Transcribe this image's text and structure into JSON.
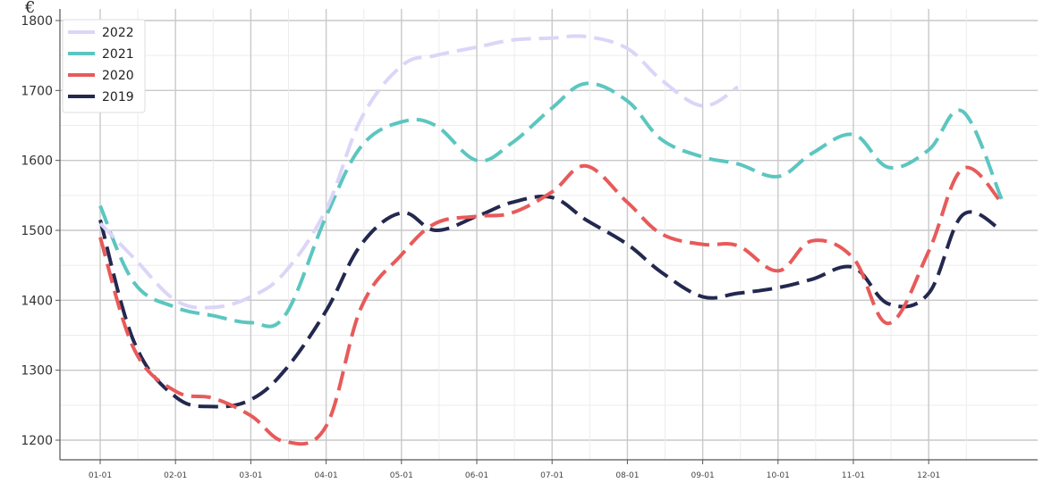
{
  "chart_data": {
    "type": "line",
    "ylabel": "€",
    "ylim": [
      1170,
      1810
    ],
    "grid": true,
    "legend_position": "top-left",
    "x_ticks": [
      "01-01",
      "02-01",
      "03-01",
      "04-01",
      "05-01",
      "06-01",
      "07-01",
      "08-01",
      "09-01",
      "10-01",
      "11-01",
      "12-01"
    ],
    "y_ticks": [
      1200,
      1300,
      1400,
      1500,
      1600,
      1700,
      1800
    ],
    "series": [
      {
        "name": "2022",
        "color": "#dcd5f8",
        "points": [
          [
            "01-01",
            1510
          ],
          [
            "01-15",
            1460
          ],
          [
            "02-01",
            1400
          ],
          [
            "02-15",
            1390
          ],
          [
            "03-01",
            1405
          ],
          [
            "03-15",
            1440
          ],
          [
            "04-01",
            1530
          ],
          [
            "04-15",
            1660
          ],
          [
            "05-01",
            1735
          ],
          [
            "05-15",
            1750
          ],
          [
            "06-01",
            1762
          ],
          [
            "06-15",
            1772
          ],
          [
            "07-01",
            1775
          ],
          [
            "07-15",
            1777
          ],
          [
            "08-01",
            1760
          ],
          [
            "08-15",
            1715
          ],
          [
            "09-01",
            1678
          ],
          [
            "09-15",
            1705
          ]
        ]
      },
      {
        "name": "2021",
        "color": "#5cc6c0",
        "points": [
          [
            "01-01",
            1535
          ],
          [
            "01-15",
            1425
          ],
          [
            "02-01",
            1390
          ],
          [
            "02-15",
            1378
          ],
          [
            "03-01",
            1368
          ],
          [
            "03-15",
            1378
          ],
          [
            "04-01",
            1520
          ],
          [
            "04-15",
            1620
          ],
          [
            "05-01",
            1655
          ],
          [
            "05-15",
            1650
          ],
          [
            "06-01",
            1600
          ],
          [
            "06-15",
            1625
          ],
          [
            "07-01",
            1675
          ],
          [
            "07-15",
            1710
          ],
          [
            "08-01",
            1685
          ],
          [
            "08-15",
            1630
          ],
          [
            "09-01",
            1605
          ],
          [
            "09-15",
            1595
          ],
          [
            "10-01",
            1577
          ],
          [
            "10-15",
            1610
          ],
          [
            "11-01",
            1637
          ],
          [
            "11-15",
            1590
          ],
          [
            "12-01",
            1615
          ],
          [
            "12-15",
            1670
          ],
          [
            "12-31",
            1545
          ]
        ]
      },
      {
        "name": "2020",
        "color": "#e85a5a",
        "points": [
          [
            "01-01",
            1490
          ],
          [
            "01-15",
            1330
          ],
          [
            "02-01",
            1270
          ],
          [
            "02-15",
            1260
          ],
          [
            "03-01",
            1235
          ],
          [
            "03-15",
            1198
          ],
          [
            "04-01",
            1220
          ],
          [
            "04-15",
            1390
          ],
          [
            "05-01",
            1465
          ],
          [
            "05-15",
            1510
          ],
          [
            "06-01",
            1520
          ],
          [
            "06-15",
            1525
          ],
          [
            "07-01",
            1555
          ],
          [
            "07-15",
            1592
          ],
          [
            "08-01",
            1540
          ],
          [
            "08-15",
            1495
          ],
          [
            "09-01",
            1480
          ],
          [
            "09-15",
            1478
          ],
          [
            "10-01",
            1442
          ],
          [
            "10-15",
            1485
          ],
          [
            "11-01",
            1460
          ],
          [
            "11-15",
            1367
          ],
          [
            "12-01",
            1470
          ],
          [
            "12-15",
            1588
          ],
          [
            "12-31",
            1540
          ]
        ]
      },
      {
        "name": "2019",
        "color": "#23284f",
        "points": [
          [
            "01-01",
            1515
          ],
          [
            "01-15",
            1340
          ],
          [
            "02-01",
            1262
          ],
          [
            "02-15",
            1248
          ],
          [
            "03-01",
            1258
          ],
          [
            "03-15",
            1300
          ],
          [
            "04-01",
            1385
          ],
          [
            "04-15",
            1480
          ],
          [
            "05-01",
            1525
          ],
          [
            "05-15",
            1500
          ],
          [
            "06-01",
            1520
          ],
          [
            "06-15",
            1540
          ],
          [
            "07-01",
            1547
          ],
          [
            "07-15",
            1515
          ],
          [
            "08-01",
            1480
          ],
          [
            "08-15",
            1440
          ],
          [
            "09-01",
            1405
          ],
          [
            "09-15",
            1410
          ],
          [
            "10-01",
            1418
          ],
          [
            "10-15",
            1430
          ],
          [
            "11-01",
            1447
          ],
          [
            "11-15",
            1395
          ],
          [
            "12-01",
            1410
          ],
          [
            "12-15",
            1522
          ],
          [
            "12-31",
            1500
          ]
        ]
      }
    ]
  }
}
